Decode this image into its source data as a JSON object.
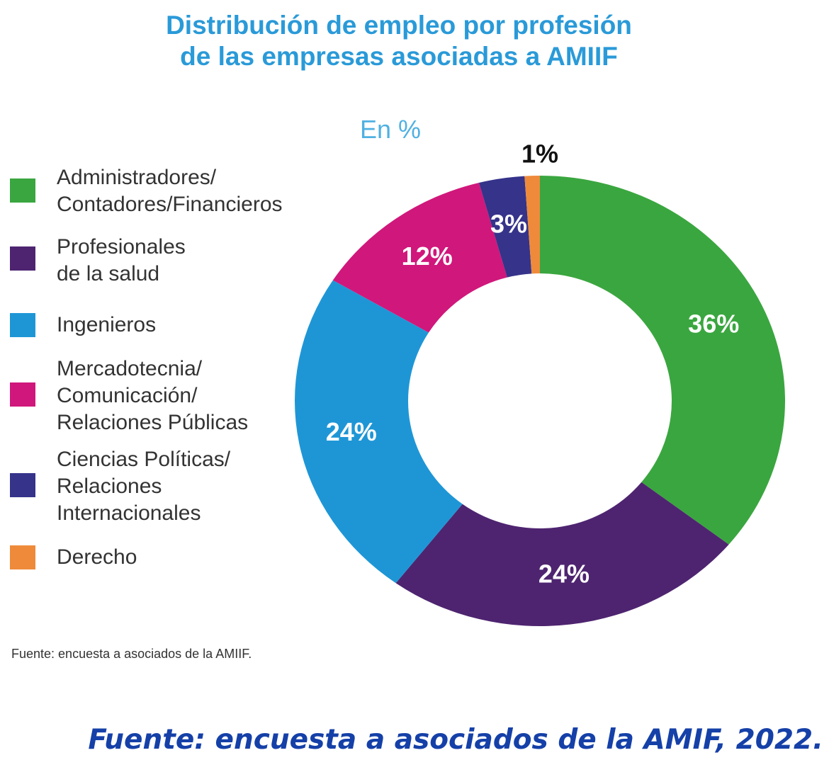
{
  "chart_data": {
    "type": "pie",
    "subtype": "donut",
    "title": [
      "Distribución de empleo por profesión",
      "de las empresas asociadas a AMIIF"
    ],
    "unit_label": "En %",
    "categories": [
      "Administradores/\nContadores/Financieros",
      "Profesionales\nde la salud",
      "Ingenieros",
      "Mercadotecnia/\nComunicación/\nRelaciones Públicas",
      "Ciencias Políticas/\nRelaciones\nInternacionales",
      "Derecho"
    ],
    "values": [
      36,
      24,
      24,
      12,
      3,
      1
    ],
    "data_labels": [
      "36%",
      "24%",
      "24%",
      "12%",
      "3%",
      "1%"
    ],
    "colors": [
      "#3aa63f",
      "#4e2470",
      "#1e96d6",
      "#d0177b",
      "#35338a",
      "#ee8a3a"
    ],
    "legend_placement": "left",
    "footnote": "Fuente: encuesta a asociados de la AMIIF.",
    "source": "Fuente: encuesta a asociados de la AMIF, 2022."
  }
}
